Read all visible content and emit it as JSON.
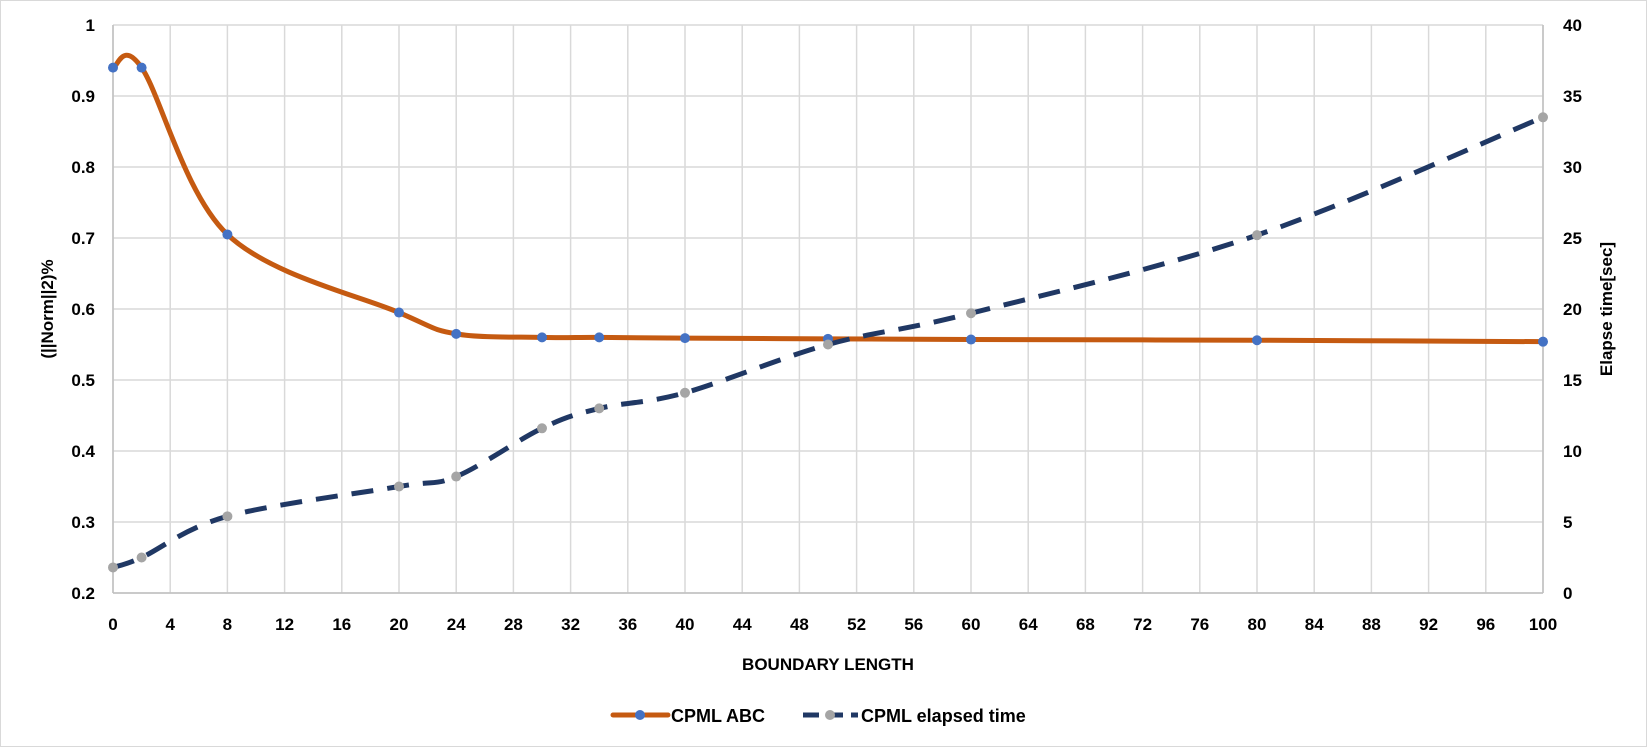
{
  "chart_data": {
    "type": "line",
    "xlabel": "BOUNDARY LENGTH",
    "ylabel_left": "(||Norm||2)%",
    "ylabel_right": "Elapse time[sec]",
    "xlim": [
      0,
      100
    ],
    "x_ticks": [
      0,
      4,
      8,
      12,
      16,
      20,
      24,
      28,
      32,
      36,
      40,
      44,
      48,
      52,
      56,
      60,
      64,
      68,
      72,
      76,
      80,
      84,
      88,
      92,
      96,
      100
    ],
    "ylim_left": [
      0.2,
      1
    ],
    "y_ticks_left": [
      "0.2",
      "0.3",
      "0.4",
      "0.5",
      "0.6",
      "0.7",
      "0.8",
      "0.9",
      "1"
    ],
    "ylim_right": [
      0,
      40
    ],
    "y_ticks_right": [
      "0",
      "5",
      "10",
      "15",
      "20",
      "25",
      "30",
      "35",
      "40"
    ],
    "grid": true,
    "legend_position": "bottom-center",
    "series": [
      {
        "name": "CPML ABC",
        "axis": "left",
        "color": "#c55a11",
        "marker_color": "#4472c4",
        "line_style": "solid",
        "x": [
          0,
          2,
          8,
          20,
          24,
          30,
          34,
          40,
          50,
          60,
          80,
          100
        ],
        "y": [
          0.94,
          0.94,
          0.705,
          0.595,
          0.565,
          0.56,
          0.56,
          0.559,
          0.558,
          0.557,
          0.556,
          0.554
        ]
      },
      {
        "name": "CPML elapsed time",
        "axis": "right",
        "color": "#203864",
        "marker_color": "#a5a5a5",
        "line_style": "dashed",
        "x": [
          0,
          2,
          8,
          20,
          24,
          30,
          34,
          40,
          50,
          60,
          80,
          100
        ],
        "y": [
          1.8,
          2.5,
          5.4,
          7.5,
          8.2,
          11.6,
          13.0,
          14.1,
          17.5,
          19.7,
          25.2,
          33.5
        ]
      }
    ]
  }
}
